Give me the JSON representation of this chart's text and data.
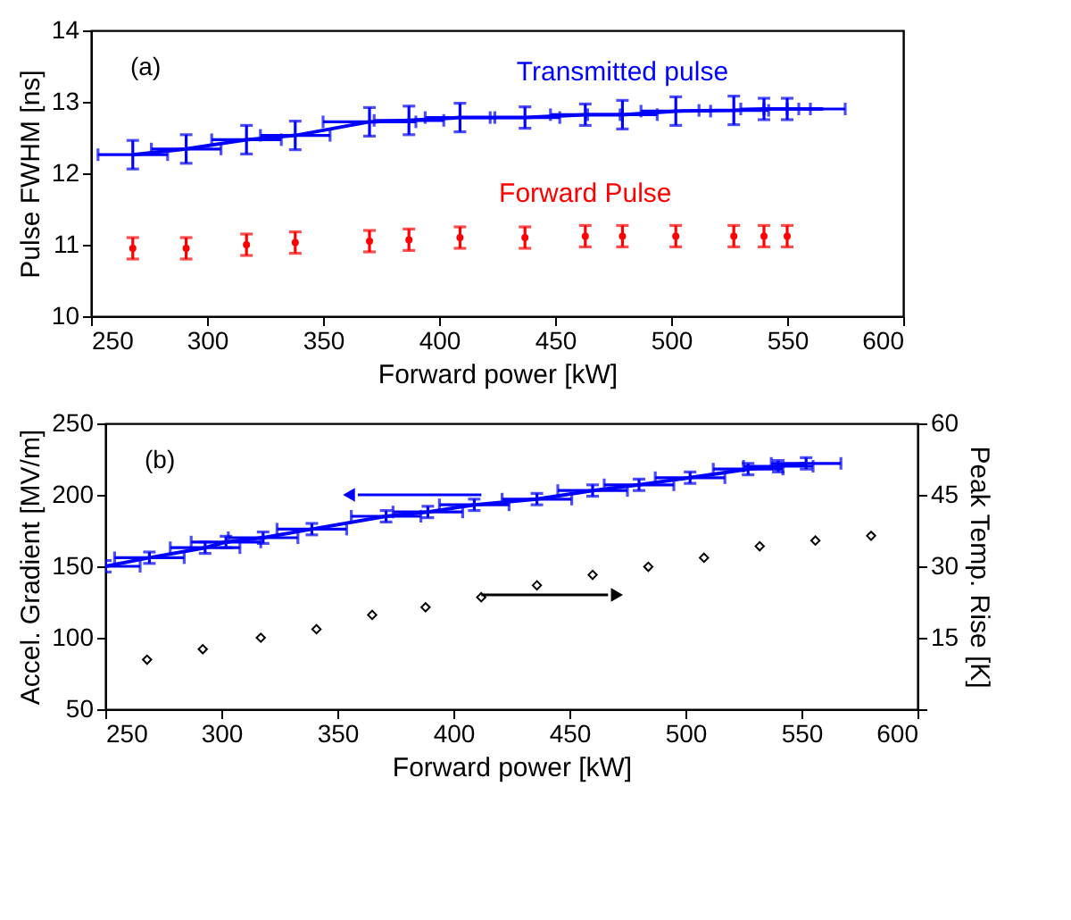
{
  "chart_data": [
    {
      "type": "line",
      "xlabel": "Forward power [kW]",
      "ylabel": "Pulse FWHM [ns]",
      "xlim": [
        250,
        600
      ],
      "xticks": [
        250,
        300,
        350,
        400,
        450,
        500,
        550,
        600
      ],
      "ylim": [
        10,
        14
      ],
      "yticks": [
        10,
        11,
        12,
        13,
        14
      ],
      "annotations": [
        "(a)"
      ],
      "series": [
        {
          "name": "Transmitted pulse",
          "marker": "none",
          "color": "#0000ff",
          "x": [
            268,
            291,
            317,
            338,
            370,
            387,
            409,
            437,
            463,
            479,
            502,
            527,
            540,
            550,
            565
          ],
          "values": [
            12.26,
            12.34,
            12.47,
            12.53,
            12.72,
            12.74,
            12.78,
            12.78,
            12.82,
            12.82,
            12.87,
            12.88,
            12.9,
            12.9,
            12.9
          ],
          "errors": [
            0.2,
            0.2,
            0.2,
            0.2,
            0.2,
            0.2,
            0.2,
            0.15,
            0.15,
            0.2,
            0.2,
            0.2,
            0.15,
            0.15,
            null
          ],
          "xerrors": [
            15,
            15,
            15,
            15,
            20,
            15,
            15,
            15,
            15,
            15,
            15,
            15,
            10,
            10,
            10
          ]
        },
        {
          "name": "Forward Pulse",
          "type": "scatter",
          "marker": "circle",
          "color": "#ff0000",
          "x": [
            268,
            291,
            317,
            338,
            370,
            387,
            409,
            437,
            463,
            479,
            502,
            527,
            540,
            550
          ],
          "values": [
            10.95,
            10.95,
            11.0,
            11.03,
            11.05,
            11.07,
            11.1,
            11.1,
            11.12,
            11.12,
            11.12,
            11.12,
            11.12,
            11.12
          ],
          "errors": [
            0.15,
            0.15,
            0.15,
            0.15,
            0.15,
            0.15,
            0.15,
            0.15,
            0.15,
            0.15,
            0.15,
            0.15,
            0.15,
            0.15
          ]
        }
      ]
    },
    {
      "type": "line",
      "xlabel": "Forward power [kW]",
      "ylabel": "Accel. Gradient [MV/m]",
      "y2label": "Peak Temp. Rise [K]",
      "xlim": [
        250,
        600
      ],
      "xticks": [
        250,
        300,
        350,
        400,
        450,
        500,
        550,
        600
      ],
      "ylim": [
        50,
        250
      ],
      "yticks": [
        50,
        100,
        150,
        200,
        250
      ],
      "y2lim": [
        0,
        60
      ],
      "y2ticks": [
        {
          "value": 0,
          "label": null
        },
        15,
        30,
        45,
        60
      ],
      "annotations": [
        "(b)"
      ],
      "series": [
        {
          "marker": "none",
          "color": "#0000ff",
          "x": [
            250,
            269,
            293,
            302,
            318,
            339,
            371,
            389,
            409,
            436,
            460,
            480,
            502,
            527,
            540,
            552
          ],
          "values": [
            150,
            156,
            163,
            167,
            170,
            176,
            185,
            188,
            193,
            197,
            203,
            207,
            212,
            218,
            220,
            222
          ],
          "errors": [
            4,
            4,
            4,
            4,
            4,
            4,
            4,
            4,
            4,
            4,
            4,
            4,
            4,
            4,
            4,
            4
          ],
          "xerrors": [
            15,
            15,
            15,
            15,
            15,
            15,
            15,
            15,
            15,
            15,
            15,
            15,
            15,
            15,
            15,
            15
          ]
        },
        {
          "type": "scatter",
          "marker": "diamond",
          "axis": "y2",
          "color": "#000000",
          "x": [
            268,
            292,
            317,
            341,
            365,
            388,
            412,
            436,
            460,
            484,
            508,
            532,
            556,
            580
          ],
          "values": [
            10.4,
            12.6,
            15,
            16.8,
            19.8,
            21.4,
            23.5,
            26,
            28.2,
            29.9,
            31.8,
            34.2,
            35.4,
            36.4
          ]
        }
      ]
    }
  ]
}
